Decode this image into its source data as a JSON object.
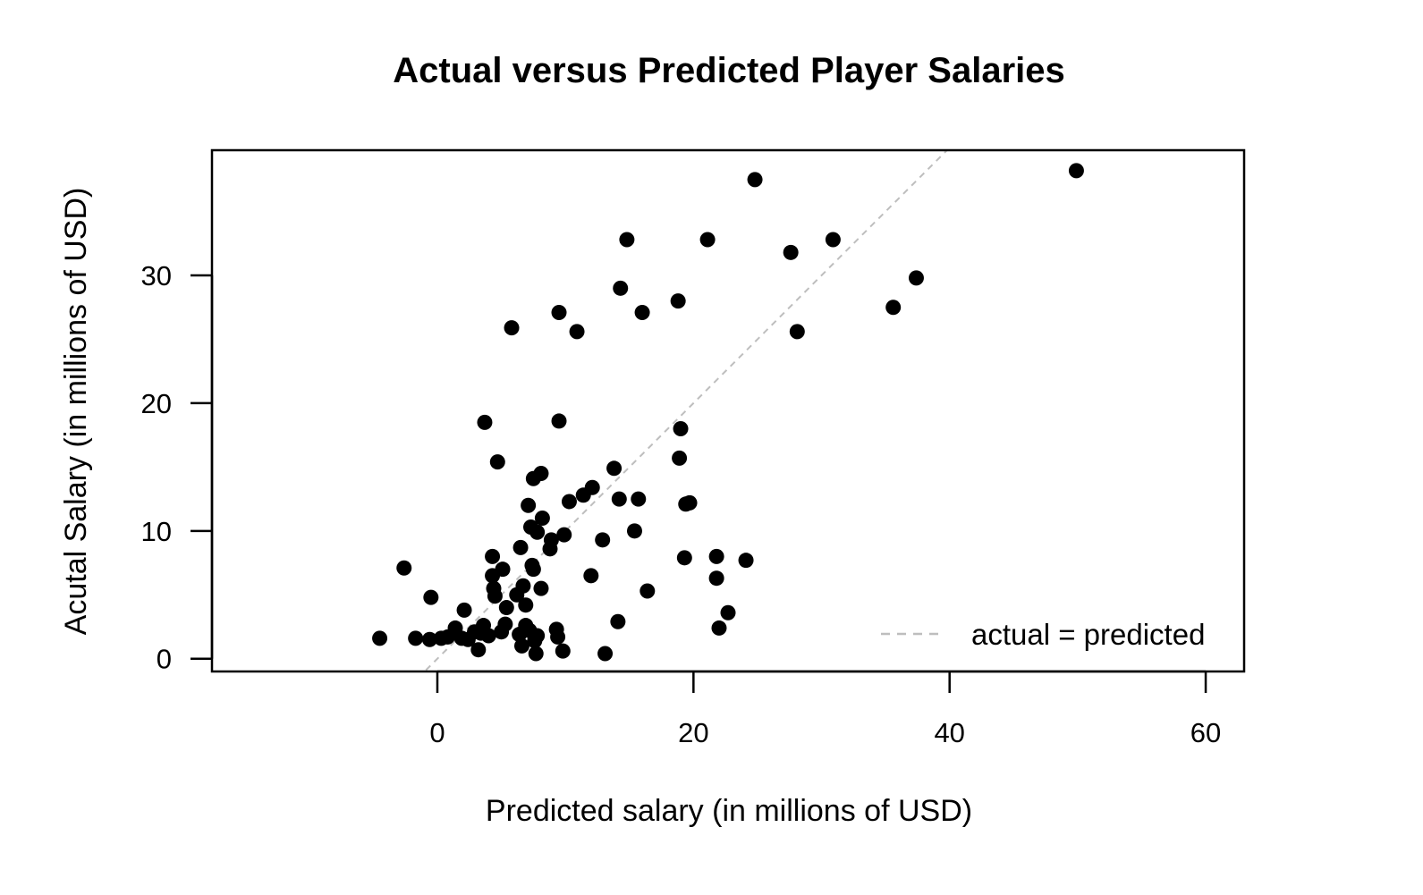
{
  "chart_data": {
    "type": "scatter",
    "title": "Actual versus Predicted Player Salaries",
    "xlabel": "Predicted salary (in millions of USD)",
    "ylabel": "Acutal Salary (in millions of USD)",
    "xlim": [
      -17.6,
      63.0
    ],
    "ylim": [
      -1.0,
      39.8
    ],
    "xticks": [
      0,
      20,
      40,
      60
    ],
    "yticks": [
      0,
      10,
      20,
      30
    ],
    "grid": false,
    "legend": {
      "position": "bottom-right",
      "entries": [
        {
          "label": "actual = predicted",
          "style": "dashed",
          "color": "#BEBEBE"
        }
      ]
    },
    "reference_line": {
      "label": "actual = predicted",
      "slope": 1,
      "intercept": 0,
      "color": "#BEBEBE"
    },
    "point_color": "#000000",
    "points": [
      {
        "x": -4.5,
        "y": 1.6
      },
      {
        "x": -2.6,
        "y": 7.1
      },
      {
        "x": -1.7,
        "y": 1.6
      },
      {
        "x": -0.6,
        "y": 1.5
      },
      {
        "x": -0.5,
        "y": 4.8
      },
      {
        "x": 0.3,
        "y": 1.6
      },
      {
        "x": 0.8,
        "y": 1.7
      },
      {
        "x": 1.4,
        "y": 2.4
      },
      {
        "x": 1.9,
        "y": 1.6
      },
      {
        "x": 2.1,
        "y": 3.8
      },
      {
        "x": 2.4,
        "y": 1.5
      },
      {
        "x": 2.9,
        "y": 2.1
      },
      {
        "x": 3.2,
        "y": 0.7
      },
      {
        "x": 3.4,
        "y": 2.0
      },
      {
        "x": 3.6,
        "y": 2.6
      },
      {
        "x": 3.7,
        "y": 18.5
      },
      {
        "x": 4.0,
        "y": 1.8
      },
      {
        "x": 4.3,
        "y": 8.0
      },
      {
        "x": 4.3,
        "y": 6.5
      },
      {
        "x": 4.4,
        "y": 5.5
      },
      {
        "x": 4.5,
        "y": 4.9
      },
      {
        "x": 4.7,
        "y": 15.4
      },
      {
        "x": 5.0,
        "y": 2.1
      },
      {
        "x": 5.1,
        "y": 7.0
      },
      {
        "x": 5.3,
        "y": 2.7
      },
      {
        "x": 5.4,
        "y": 4.0
      },
      {
        "x": 5.8,
        "y": 25.9
      },
      {
        "x": 6.2,
        "y": 5.0
      },
      {
        "x": 6.4,
        "y": 1.9
      },
      {
        "x": 6.5,
        "y": 8.7
      },
      {
        "x": 6.6,
        "y": 1.0
      },
      {
        "x": 6.7,
        "y": 5.7
      },
      {
        "x": 6.9,
        "y": 2.6
      },
      {
        "x": 6.9,
        "y": 4.2
      },
      {
        "x": 7.1,
        "y": 12.0
      },
      {
        "x": 7.2,
        "y": 2.2
      },
      {
        "x": 7.3,
        "y": 10.3
      },
      {
        "x": 7.4,
        "y": 7.3
      },
      {
        "x": 7.5,
        "y": 7.0
      },
      {
        "x": 7.5,
        "y": 14.1
      },
      {
        "x": 7.6,
        "y": 1.4
      },
      {
        "x": 7.7,
        "y": 0.4
      },
      {
        "x": 7.8,
        "y": 1.8
      },
      {
        "x": 7.8,
        "y": 9.9
      },
      {
        "x": 8.1,
        "y": 5.5
      },
      {
        "x": 8.1,
        "y": 14.5
      },
      {
        "x": 8.2,
        "y": 11.0
      },
      {
        "x": 8.8,
        "y": 8.6
      },
      {
        "x": 8.9,
        "y": 9.3
      },
      {
        "x": 9.3,
        "y": 2.3
      },
      {
        "x": 9.4,
        "y": 1.7
      },
      {
        "x": 9.5,
        "y": 27.1
      },
      {
        "x": 9.5,
        "y": 18.6
      },
      {
        "x": 9.8,
        "y": 0.6
      },
      {
        "x": 9.9,
        "y": 9.7
      },
      {
        "x": 10.3,
        "y": 12.3
      },
      {
        "x": 10.9,
        "y": 25.6
      },
      {
        "x": 11.4,
        "y": 12.8
      },
      {
        "x": 12.0,
        "y": 6.5
      },
      {
        "x": 12.1,
        "y": 13.4
      },
      {
        "x": 12.9,
        "y": 9.3
      },
      {
        "x": 13.1,
        "y": 0.4
      },
      {
        "x": 13.8,
        "y": 14.9
      },
      {
        "x": 14.1,
        "y": 2.9
      },
      {
        "x": 14.2,
        "y": 12.5
      },
      {
        "x": 14.3,
        "y": 29.0
      },
      {
        "x": 14.8,
        "y": 32.8
      },
      {
        "x": 15.4,
        "y": 10.0
      },
      {
        "x": 15.7,
        "y": 12.5
      },
      {
        "x": 16.0,
        "y": 27.1
      },
      {
        "x": 16.4,
        "y": 5.3
      },
      {
        "x": 18.8,
        "y": 28.0
      },
      {
        "x": 18.9,
        "y": 15.7
      },
      {
        "x": 19.0,
        "y": 18.0
      },
      {
        "x": 19.3,
        "y": 7.9
      },
      {
        "x": 19.4,
        "y": 12.1
      },
      {
        "x": 19.7,
        "y": 12.2
      },
      {
        "x": 21.1,
        "y": 32.8
      },
      {
        "x": 21.8,
        "y": 8.0
      },
      {
        "x": 21.8,
        "y": 6.3
      },
      {
        "x": 22.0,
        "y": 2.4
      },
      {
        "x": 22.7,
        "y": 3.6
      },
      {
        "x": 24.1,
        "y": 7.7
      },
      {
        "x": 24.8,
        "y": 37.5
      },
      {
        "x": 27.6,
        "y": 31.8
      },
      {
        "x": 28.1,
        "y": 25.6
      },
      {
        "x": 30.9,
        "y": 32.8
      },
      {
        "x": 35.6,
        "y": 27.5
      },
      {
        "x": 37.4,
        "y": 29.8
      },
      {
        "x": 49.9,
        "y": 38.2
      }
    ]
  }
}
